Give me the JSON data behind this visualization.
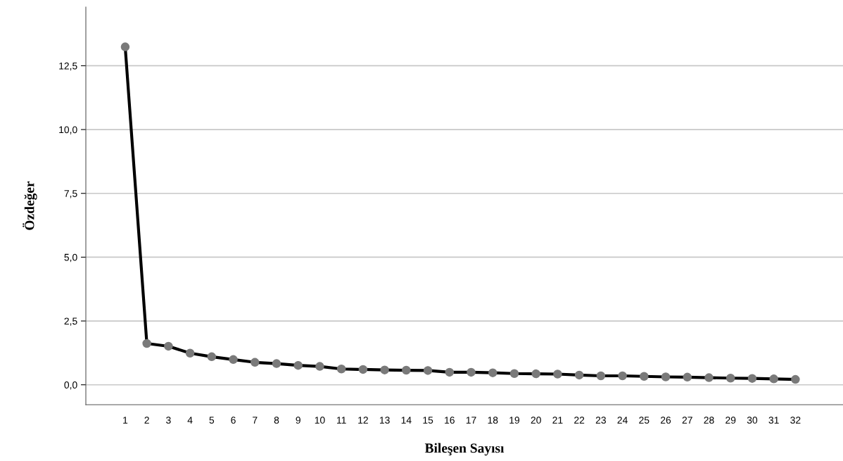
{
  "chart_data": {
    "type": "line",
    "xlabel": "Bileşen Sayısı",
    "ylabel": "Özdeğer",
    "categories": [
      "1",
      "2",
      "3",
      "4",
      "5",
      "6",
      "7",
      "8",
      "9",
      "10",
      "11",
      "12",
      "13",
      "14",
      "15",
      "16",
      "17",
      "18",
      "19",
      "20",
      "21",
      "22",
      "23",
      "24",
      "25",
      "26",
      "27",
      "28",
      "29",
      "30",
      "31",
      "32"
    ],
    "series": [
      {
        "color": "#000000",
        "values": [
          13.24,
          1.62,
          1.51,
          1.24,
          1.1,
          0.99,
          0.88,
          0.83,
          0.76,
          0.72,
          0.62,
          0.6,
          0.58,
          0.57,
          0.56,
          0.49,
          0.49,
          0.47,
          0.44,
          0.43,
          0.42,
          0.38,
          0.35,
          0.35,
          0.33,
          0.31,
          0.3,
          0.28,
          0.26,
          0.25,
          0.23,
          0.21
        ]
      }
    ],
    "ylim": [
      -0.78,
      14.8
    ],
    "yticks": [
      {
        "value": 0,
        "label": "0,0"
      },
      {
        "value": 2.5,
        "label": "2,5"
      },
      {
        "value": 5,
        "label": "5,0"
      },
      {
        "value": 7.5,
        "label": "7,5"
      },
      {
        "value": 10,
        "label": "10,0"
      },
      {
        "value": 12.5,
        "label": "12,5"
      }
    ],
    "grid": "y",
    "marker": "circle",
    "line_style": "solid",
    "legend": false
  }
}
